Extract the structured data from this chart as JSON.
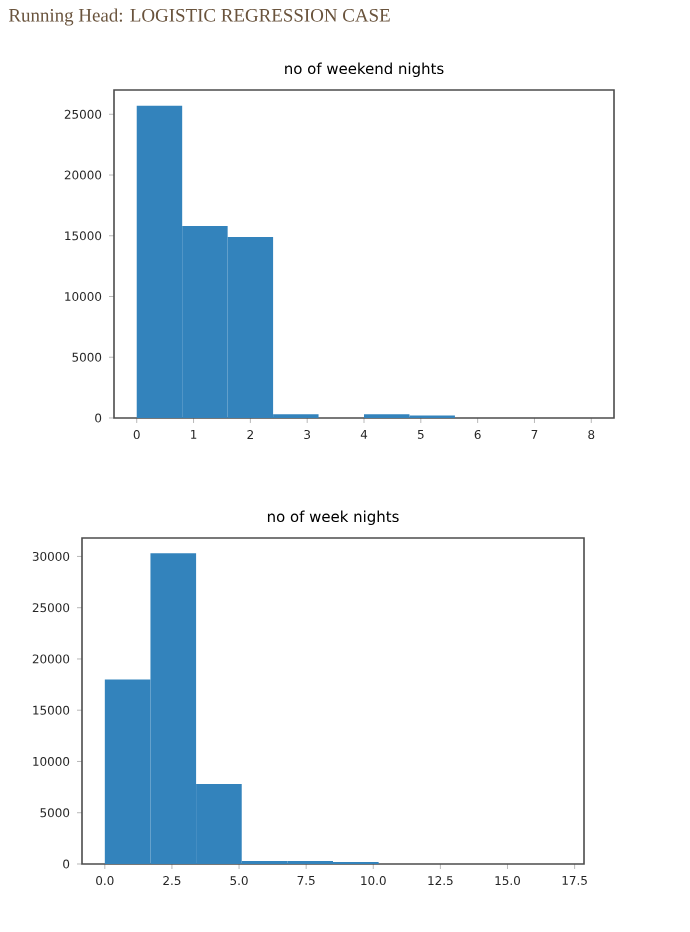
{
  "chart_data": [
    {
      "type": "histogram",
      "title": "no of weekend nights",
      "annotations": [
        "Running Head: LOGISTIC REGRESSION CASE"
      ],
      "color": "#3383bc",
      "bins": [
        0,
        0.8,
        1.6,
        2.4,
        3.2,
        4.0,
        4.8,
        5.6,
        6.4,
        7.2,
        8.0
      ],
      "values": [
        25700,
        15800,
        14900,
        300,
        0,
        300,
        200,
        0,
        0,
        0
      ],
      "xlim": [
        -0.4,
        8.4
      ],
      "ylim": [
        0,
        27000
      ],
      "xticks": [
        0,
        1,
        2,
        3,
        4,
        5,
        6,
        7,
        8
      ],
      "yticks": [
        0,
        5000,
        10000,
        15000,
        20000,
        25000
      ]
    },
    {
      "type": "histogram",
      "title": "no of week nights",
      "color": "#3383bc",
      "bins": [
        0,
        1.7,
        3.4,
        5.1,
        6.8,
        8.5,
        10.2,
        11.9,
        13.6,
        15.3,
        17.0
      ],
      "values": [
        18000,
        30300,
        7800,
        300,
        300,
        200,
        0,
        0,
        0,
        0
      ],
      "xlim": [
        -0.85,
        17.85
      ],
      "ylim": [
        0,
        31800
      ],
      "xticks": [
        {
          "value": 0,
          "label": "0.0"
        },
        {
          "value": 2.5,
          "label": "2.5"
        },
        {
          "value": 5,
          "label": "5.0"
        },
        {
          "value": 7.5,
          "label": "7.5"
        },
        {
          "value": 10,
          "label": "10.0"
        },
        {
          "value": 12.5,
          "label": "12.5"
        },
        {
          "value": 15,
          "label": "15.0"
        },
        {
          "value": 17.5,
          "label": "17.5"
        }
      ],
      "yticks": [
        0,
        5000,
        10000,
        15000,
        20000,
        25000,
        30000
      ]
    }
  ]
}
